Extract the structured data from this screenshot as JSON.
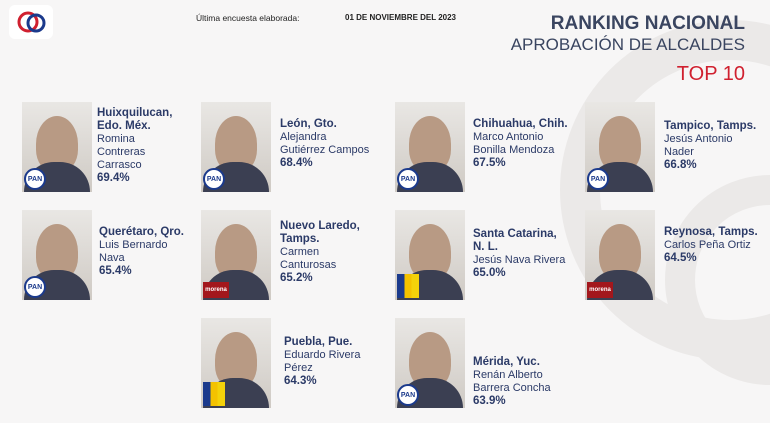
{
  "header": {
    "survey_label": "Última encuesta elaborada:",
    "survey_date": "01 DE NOVIEMBRE DEL 2023",
    "title": "RANKING NACIONAL",
    "subtitle": "APROBACIÓN DE ALCALDES",
    "badge": "TOP 10"
  },
  "mayors": [
    {
      "city": [
        "Huixquilucan,",
        "Edo. Méx."
      ],
      "name": [
        "Romina",
        "Contreras",
        "Carrasco"
      ],
      "approval": "69.4%",
      "party": "PAN"
    },
    {
      "city": [
        "León, Gto."
      ],
      "name": [
        "Alejandra",
        "Gutiérrez Campos"
      ],
      "approval": "68.4%",
      "party": "PAN"
    },
    {
      "city": [
        "Chihuahua, Chih."
      ],
      "name": [
        "Marco Antonio",
        "Bonilla Mendoza"
      ],
      "approval": "67.5%",
      "party": "PAN"
    },
    {
      "city": [
        "Tampico, Tamps."
      ],
      "name": [
        "Jesús Antonio",
        "Nader"
      ],
      "approval": "66.8%",
      "party": "PAN"
    },
    {
      "city": [
        "Querétaro, Qro."
      ],
      "name": [
        "Luis Bernardo",
        "Nava"
      ],
      "approval": "65.4%",
      "party": "PAN"
    },
    {
      "city": [
        "Nuevo Laredo,",
        "Tamps."
      ],
      "name": [
        "Carmen",
        "Canturosas"
      ],
      "approval": "65.2%",
      "party": "morena"
    },
    {
      "city": [
        "Santa Catarina,",
        "N. L."
      ],
      "name": [
        "Jesús Nava Rivera"
      ],
      "approval": "65.0%"
    },
    {
      "city": [
        "Reynosa, Tamps."
      ],
      "name": [
        "Carlos Peña Ortiz"
      ],
      "approval": "64.5%",
      "party": "morena"
    },
    {
      "city": [
        "Puebla, Pue."
      ],
      "name": [
        "Eduardo Rivera",
        "Pérez"
      ],
      "approval": "64.3%"
    },
    {
      "city": [
        "Mérida, Yuc."
      ],
      "name": [
        "Renán Alberto",
        "Barrera Concha"
      ],
      "approval": "63.9%",
      "party": "PAN"
    }
  ]
}
